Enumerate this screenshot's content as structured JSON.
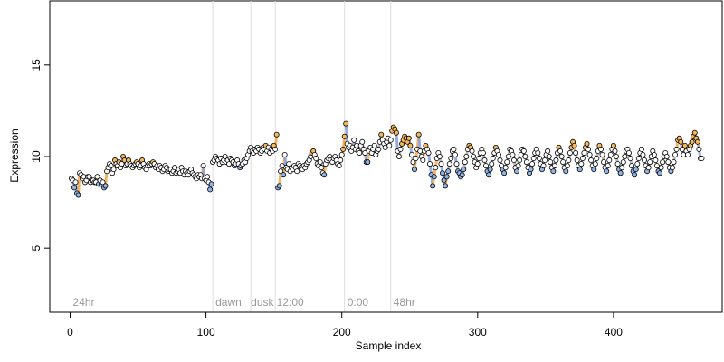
{
  "chart_data": {
    "type": "scatter",
    "title": "",
    "xlabel": "Sample index",
    "ylabel": "Expression",
    "xlim": [
      -15,
      480
    ],
    "ylim": [
      1.5,
      18.5
    ],
    "xticks": [
      0,
      100,
      200,
      300,
      400
    ],
    "yticks": [
      5,
      10,
      15
    ],
    "grid": false,
    "legend": "none",
    "colors": {
      "point_fill_default": "#ffffff",
      "point_fill_high": "#f5b85a",
      "point_fill_low": "#8fb3e6",
      "point_stroke": "#000000",
      "line_gray": "#a9a9a9",
      "line_orange": "#f0a84a",
      "line_blue": "#7f9fe0",
      "divider": "#dddddd",
      "phase_label": "#9a9a9a"
    },
    "phase_boundaries": [
      105,
      133,
      151,
      202,
      236
    ],
    "phase_labels": [
      {
        "x": 2,
        "text": "24hr"
      },
      {
        "x": 107,
        "text": "dawn"
      },
      {
        "x": 133,
        "text": "dusk"
      },
      {
        "x": 152,
        "text": "12:00"
      },
      {
        "x": 204,
        "text": "0:00"
      },
      {
        "x": 238,
        "text": "48hr"
      }
    ],
    "segments": [
      {
        "x_start": 1,
        "x_end": 104,
        "y": [
          8.8,
          8.7,
          8.3,
          8.6,
          8.0,
          7.9,
          9.1,
          9.0,
          8.8,
          8.9,
          8.6,
          8.7,
          8.9,
          8.9,
          8.6,
          8.7,
          8.7,
          8.6,
          8.6,
          8.9,
          8.5,
          8.7,
          8.5,
          8.6,
          8.3,
          8.4,
          9.2,
          9.4,
          9.6,
          9.5,
          9.1,
          9.3,
          9.8,
          9.6,
          9.5,
          9.7,
          9.4,
          9.6,
          10.0,
          9.8,
          9.5,
          9.6,
          9.8,
          9.6,
          9.5,
          9.4,
          9.5,
          9.6,
          9.7,
          9.6,
          9.4,
          9.5,
          9.8,
          9.6,
          9.4,
          9.3,
          9.5,
          9.6,
          9.5,
          9.6,
          9.7,
          9.6,
          9.4,
          9.5,
          9.3,
          9.5,
          9.4,
          9.2,
          9.3,
          9.5,
          9.4,
          9.2,
          9.3,
          9.3,
          9.1,
          9.2,
          9.4,
          9.1,
          9.2,
          9.3,
          9.1,
          9.4,
          9.2,
          9.0,
          9.2,
          9.1,
          9.0,
          9.2,
          9.3,
          9.1,
          9.0,
          8.9,
          8.8,
          9.0,
          8.9,
          9.0,
          8.8,
          9.5,
          8.8,
          8.7,
          8.9,
          8.6,
          8.2,
          8.5
        ]
      },
      {
        "x_start": 105,
        "x_end": 152,
        "y": [
          9.7,
          9.8,
          10.0,
          9.9,
          9.8,
          9.6,
          9.9,
          9.7,
          9.8,
          10.0,
          9.7,
          9.8,
          9.6,
          9.9,
          9.8,
          9.7,
          9.5,
          9.6,
          9.8,
          9.6,
          9.4,
          9.5,
          9.6,
          9.8,
          9.7,
          9.9,
          10.1,
          10.3,
          10.5,
          10.3,
          10.2,
          10.4,
          10.3,
          10.5,
          10.4,
          10.2,
          10.3,
          10.5,
          10.4,
          10.6,
          10.3,
          10.5,
          10.2,
          10.4,
          10.3,
          10.6,
          10.4,
          11.2
        ]
      },
      {
        "x_start": 153,
        "x_end": 202,
        "y": [
          8.3,
          8.4,
          9.2,
          9.5,
          9.0,
          10.1,
          9.4,
          9.3,
          9.6,
          9.2,
          9.4,
          9.3,
          9.5,
          9.4,
          9.2,
          9.6,
          9.5,
          9.4,
          9.3,
          9.5,
          9.4,
          9.6,
          9.7,
          9.8,
          10.0,
          10.2,
          10.3,
          10.1,
          9.9,
          9.6,
          9.5,
          9.7,
          9.4,
          9.1,
          9.0,
          9.6,
          9.8,
          9.9,
          10.0,
          9.8,
          9.7,
          9.9,
          10.0,
          9.8,
          9.6,
          9.5,
          9.8,
          10.1,
          10.4,
          11.1
        ]
      },
      {
        "x_start": 203,
        "x_end": 236,
        "y": [
          11.8,
          10.7,
          10.5,
          10.6,
          10.3,
          10.5,
          10.9,
          10.4,
          10.6,
          10.3,
          10.2,
          10.6,
          10.8,
          10.4,
          10.2,
          9.7,
          9.7,
          10.3,
          10.5,
          10.2,
          10.4,
          10.6,
          10.1,
          10.3,
          10.4,
          10.8,
          11.2,
          10.9,
          10.7,
          10.5,
          10.8,
          11.0,
          10.6,
          10.9
        ]
      },
      {
        "x_start": 237,
        "x_end": 465,
        "y": [
          11.4,
          11.6,
          11.5,
          11.3,
          10.3,
          10.0,
          10.4,
          10.7,
          10.9,
          11.1,
          11.0,
          10.8,
          11.0,
          10.6,
          10.1,
          9.7,
          9.3,
          9.9,
          10.4,
          11.2,
          10.3,
          10.0,
          9.8,
          10.3,
          10.6,
          10.4,
          10.2,
          9.6,
          9.0,
          8.4,
          8.9,
          9.4,
          9.9,
          10.2,
          10.0,
          9.6,
          9.1,
          8.7,
          8.4,
          8.9,
          9.2,
          9.6,
          9.9,
          10.3,
          10.4,
          10.1,
          9.6,
          9.2,
          9.1,
          8.9,
          9.0,
          9.3,
          9.7,
          10.0,
          10.4,
          10.6,
          10.5,
          10.3,
          10.0,
          9.7,
          9.4,
          9.6,
          9.9,
          10.2,
          10.4,
          10.2,
          9.8,
          9.5,
          9.2,
          9.0,
          9.3,
          9.6,
          9.9,
          10.2,
          10.5,
          10.3,
          10.1,
          9.8,
          9.5,
          9.3,
          9.1,
          9.4,
          9.7,
          10.0,
          10.4,
          10.3,
          10.1,
          9.8,
          9.4,
          9.2,
          9.5,
          9.8,
          10.1,
          10.4,
          10.3,
          10.0,
          9.7,
          9.4,
          9.1,
          9.3,
          9.6,
          9.9,
          10.2,
          10.4,
          10.2,
          9.9,
          9.6,
          9.3,
          9.5,
          9.8,
          10.1,
          10.3,
          10.0,
          9.7,
          9.4,
          9.2,
          9.5,
          9.8,
          10.2,
          10.5,
          10.3,
          10.0,
          9.7,
          9.4,
          9.2,
          9.5,
          9.8,
          10.2,
          10.5,
          10.8,
          10.6,
          10.2,
          9.8,
          9.5,
          9.3,
          9.6,
          9.9,
          10.2,
          10.5,
          10.7,
          10.4,
          10.1,
          9.8,
          9.5,
          9.3,
          9.6,
          9.9,
          10.3,
          10.6,
          10.4,
          10.1,
          9.7,
          9.4,
          9.2,
          9.5,
          9.8,
          10.1,
          10.4,
          10.6,
          10.3,
          10.0,
          9.6,
          9.3,
          9.1,
          9.4,
          9.7,
          10.0,
          10.3,
          10.4,
          10.2,
          9.9,
          9.5,
          9.2,
          9.0,
          9.3,
          9.6,
          9.9,
          10.2,
          10.4,
          10.1,
          9.8,
          9.5,
          9.2,
          9.4,
          9.7,
          10.0,
          10.3,
          10.1,
          9.8,
          9.5,
          9.2,
          9.1,
          9.4,
          9.7,
          10.0,
          10.2,
          10.0,
          9.7,
          9.4,
          9.2,
          9.4,
          9.7,
          10.1,
          10.4,
          10.9,
          11.0,
          10.8,
          10.4,
          10.1,
          10.6,
          10.3,
          10.1,
          10.4,
          10.6,
          10.8,
          11.1,
          11.3,
          11.0,
          10.8,
          10.4,
          9.9,
          9.9
        ]
      }
    ]
  }
}
